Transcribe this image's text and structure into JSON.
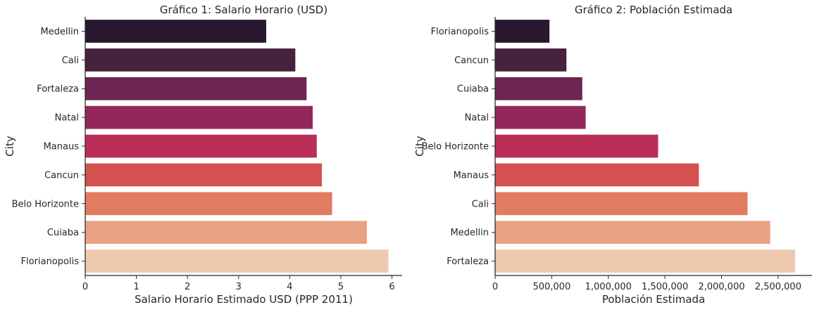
{
  "chart_data": [
    {
      "type": "bar",
      "orientation": "horizontal",
      "title": "Gráfico 1: Salario Horario (USD)",
      "xlabel": "Salario Horario Estimado USD (PPP 2011)",
      "ylabel": "City",
      "xlim": [
        0,
        6.2
      ],
      "xticks": [
        0,
        1,
        2,
        3,
        4,
        5,
        6
      ],
      "xtick_labels": [
        "0",
        "1",
        "2",
        "3",
        "4",
        "5",
        "6"
      ],
      "grid": false,
      "categories": [
        "Medellin",
        "Cali",
        "Fortaleza",
        "Natal",
        "Manaus",
        "Cancun",
        "Belo Horizonte",
        "Cuiaba",
        "Florianopolis"
      ],
      "values": [
        3.54,
        4.11,
        4.33,
        4.45,
        4.53,
        4.63,
        4.83,
        5.51,
        5.93
      ],
      "colors": [
        "#28182f",
        "#47223f",
        "#6c2651",
        "#93275a",
        "#b92f57",
        "#d4514f",
        "#e17c60",
        "#e8a383",
        "#efc8b0"
      ]
    },
    {
      "type": "bar",
      "orientation": "horizontal",
      "title": "Gráfico 2: Población Estimada",
      "xlabel": "Población Estimada",
      "ylabel": "City",
      "xlim": [
        0,
        2800000
      ],
      "xticks": [
        0,
        500000,
        1000000,
        1500000,
        2000000,
        2500000
      ],
      "xtick_labels": [
        "0",
        "500,000",
        "1,000,000",
        "1,500,000",
        "2,000,000",
        "2,500,000"
      ],
      "grid": false,
      "categories": [
        "Florianopolis",
        "Cancun",
        "Cuiaba",
        "Natal",
        "Belo Horizonte",
        "Manaus",
        "Cali",
        "Medellin",
        "Fortaleza"
      ],
      "values": [
        480000,
        630000,
        770000,
        800000,
        1440000,
        1800000,
        2230000,
        2430000,
        2650000
      ],
      "colors": [
        "#28182f",
        "#47223f",
        "#6c2651",
        "#93275a",
        "#b92f57",
        "#d4514f",
        "#e17c60",
        "#e8a383",
        "#efc8b0"
      ]
    }
  ]
}
